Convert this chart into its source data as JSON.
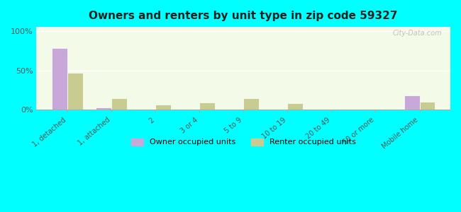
{
  "title": "Owners and renters by unit type in zip code 59327",
  "categories": [
    "1, detached",
    "1, attached",
    "2",
    "3 or 4",
    "5 to 9",
    "10 to 19",
    "20 to 49",
    "50 or more",
    "Mobile home"
  ],
  "owner_values": [
    78,
    3,
    0,
    0,
    0,
    0,
    0,
    0,
    18
  ],
  "renter_values": [
    47,
    15,
    7,
    9,
    15,
    8,
    0,
    0,
    10
  ],
  "owner_color": "#c8a8d8",
  "renter_color": "#c8cc90",
  "background_color": "#00ffff",
  "plot_bg_gradient_top": "#f0f8e8",
  "plot_bg_gradient_bottom": "#e8f8e8",
  "ylabel_ticks": [
    "0%",
    "50%",
    "100%"
  ],
  "ytick_vals": [
    0,
    50,
    100
  ],
  "ylim": [
    0,
    105
  ],
  "bar_width": 0.35,
  "legend_owner": "Owner occupied units",
  "legend_renter": "Renter occupied units",
  "watermark": "City-Data.com"
}
